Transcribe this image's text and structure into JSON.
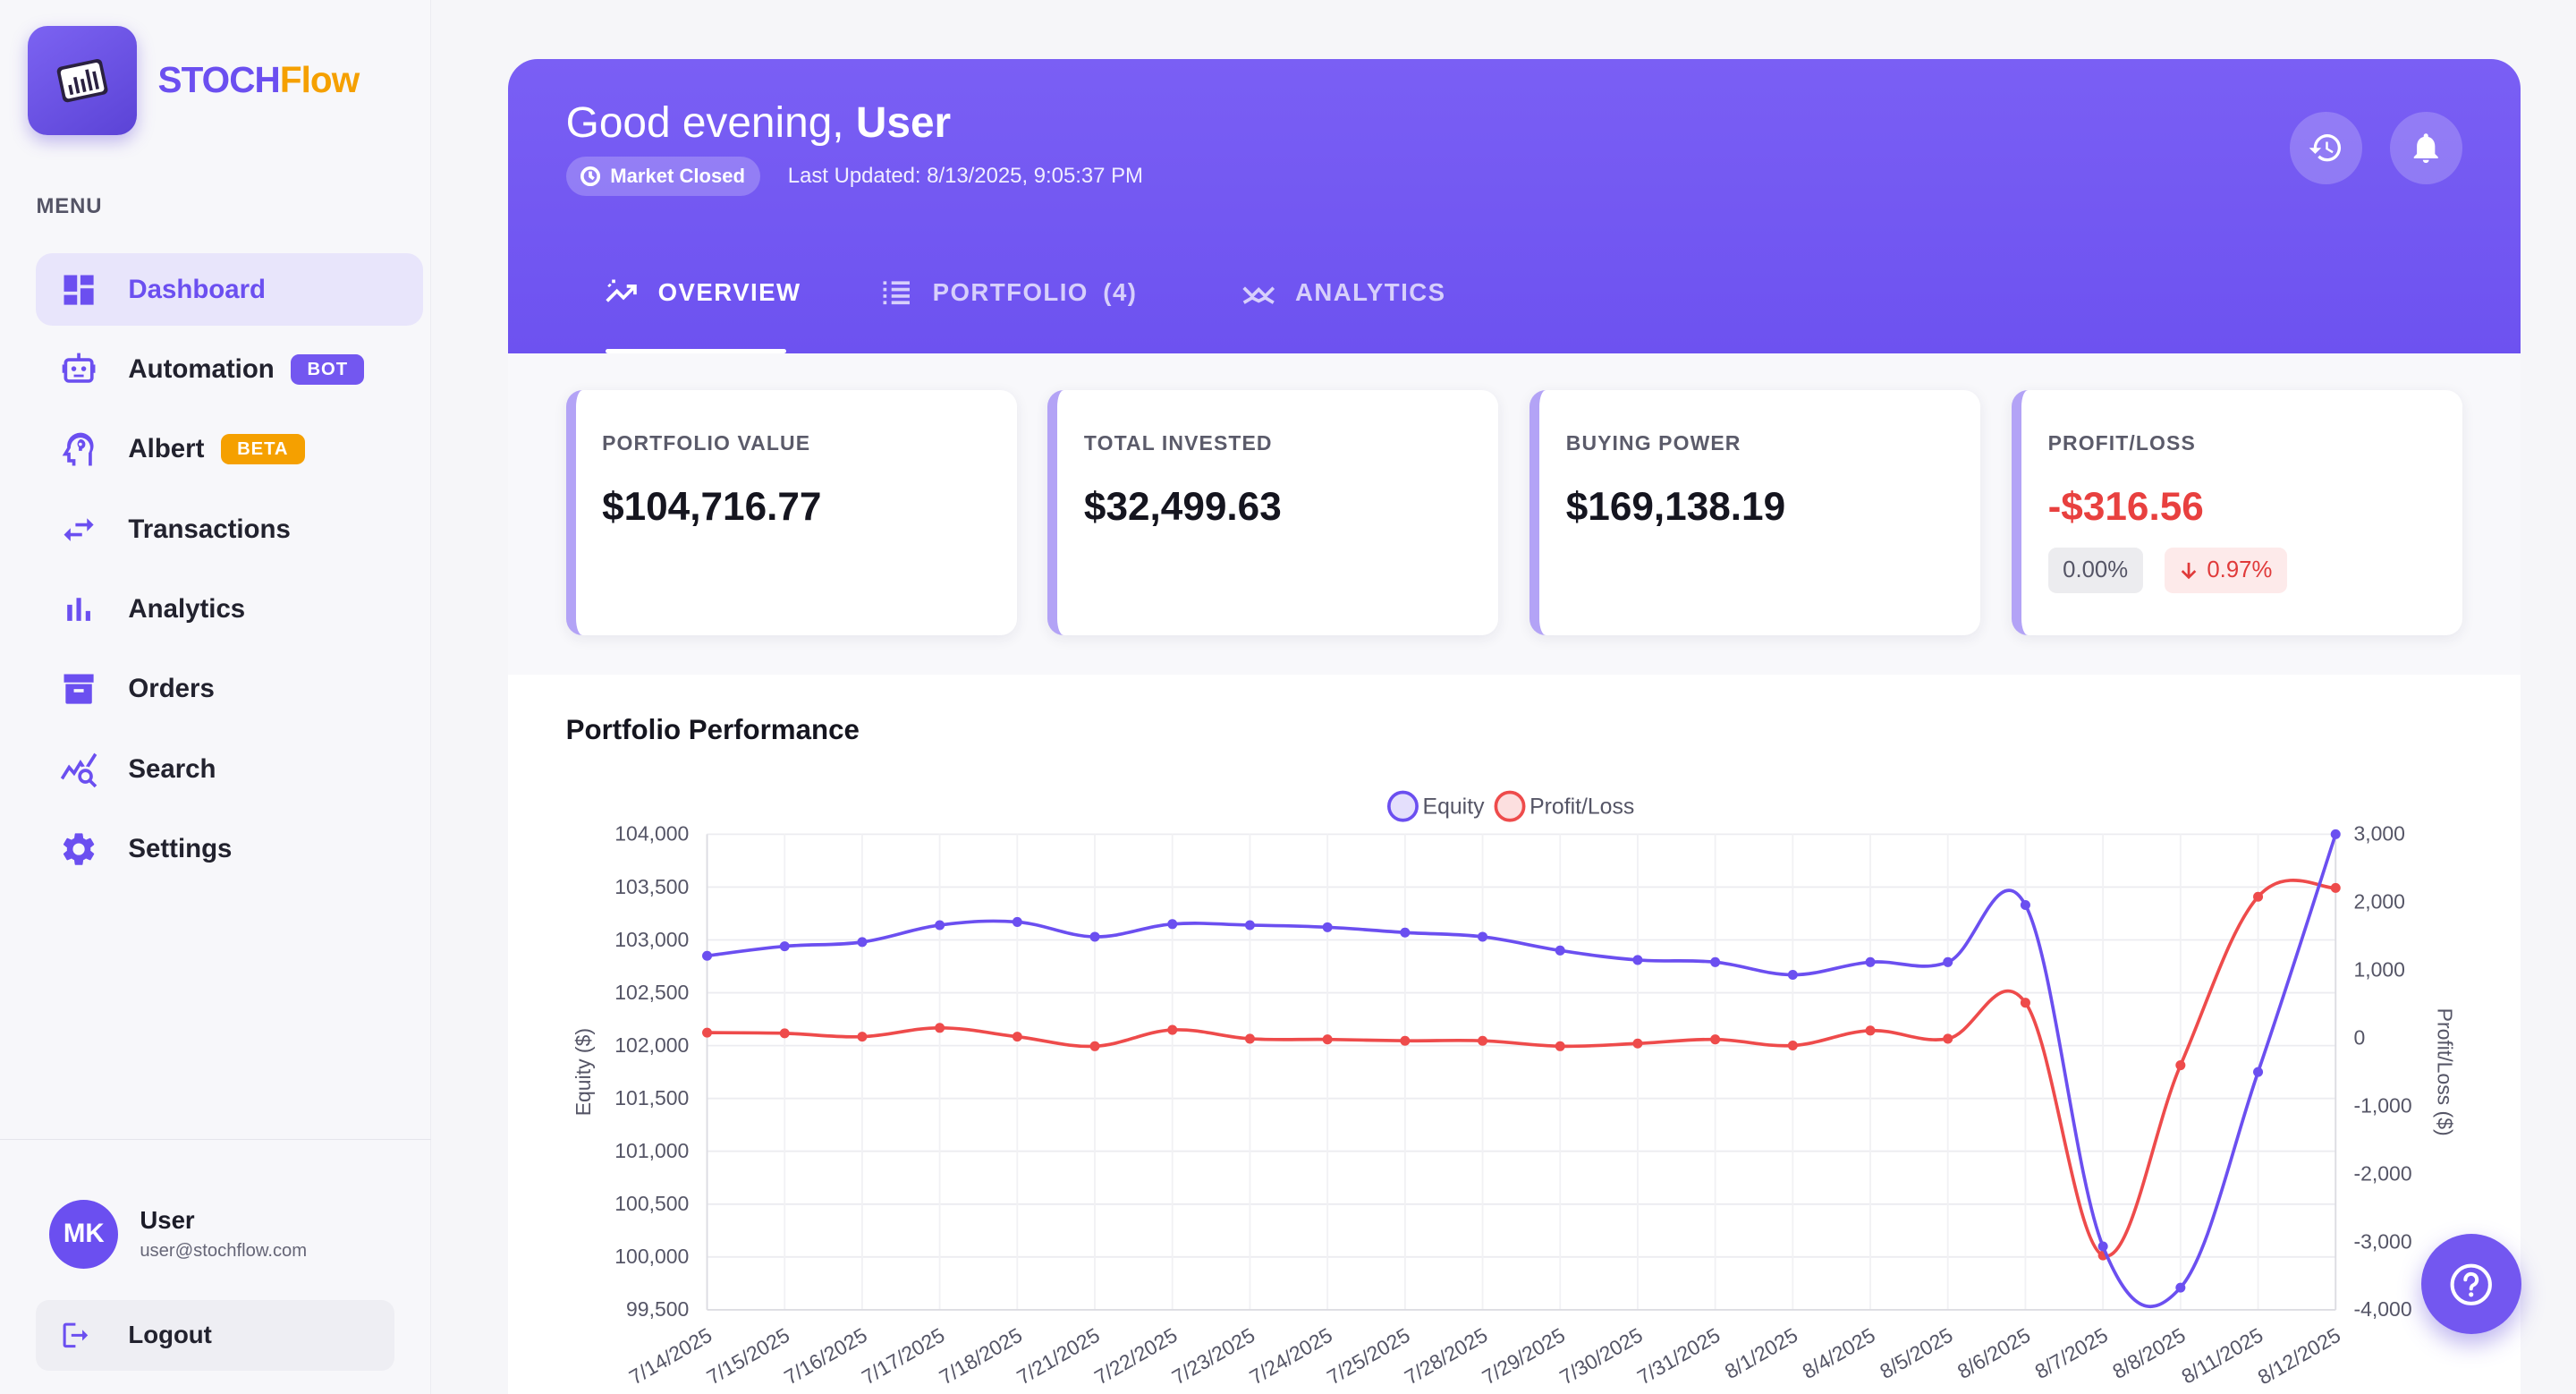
{
  "brand": {
    "part1": "STOCH",
    "part2": "Flow"
  },
  "sidebar": {
    "menu_label": "MENU",
    "items": [
      {
        "label": "Dashboard",
        "icon": "dashboard-icon"
      },
      {
        "label": "Automation",
        "icon": "robot-icon",
        "badge": "BOT"
      },
      {
        "label": "Albert",
        "icon": "brain-icon",
        "badge": "BETA"
      },
      {
        "label": "Transactions",
        "icon": "swap-arrows-icon"
      },
      {
        "label": "Analytics",
        "icon": "bar-chart-icon"
      },
      {
        "label": "Orders",
        "icon": "archive-box-icon"
      },
      {
        "label": "Search",
        "icon": "chart-search-icon"
      },
      {
        "label": "Settings",
        "icon": "gear-icon"
      }
    ],
    "user": {
      "initials": "MK",
      "name": "User",
      "email": "user@stochflow.com"
    },
    "logout_label": "Logout"
  },
  "header": {
    "greeting_prefix": "Good evening, ",
    "greeting_name": "User",
    "market_status": "Market Closed",
    "last_updated": "Last Updated: 8/13/2025, 9:05:37 PM",
    "tabs": [
      {
        "label": "OVERVIEW",
        "icon": "trending-up-icon"
      },
      {
        "label": "PORTFOLIO",
        "count": "(4)",
        "icon": "list-icon"
      },
      {
        "label": "ANALYTICS",
        "icon": "analytics-zigzag-icon"
      }
    ]
  },
  "stats": [
    {
      "title": "PORTFOLIO VALUE",
      "value": "$104,716.77"
    },
    {
      "title": "TOTAL INVESTED",
      "value": "$32,499.63"
    },
    {
      "title": "BUYING POWER",
      "value": "$169,138.19"
    },
    {
      "title": "PROFIT/LOSS",
      "value": "-$316.56",
      "chip1": "0.00%",
      "chip2": "0.97%"
    }
  ],
  "colors": {
    "accent": "#6b4ff0",
    "equity": "#6b4ff0",
    "profit_loss": "#ee4b4b",
    "negative": "#e8403f"
  },
  "chart_title": "Portfolio Performance",
  "chart_data": {
    "type": "line",
    "title": "Portfolio Performance",
    "x": [
      "7/14/2025",
      "7/15/2025",
      "7/16/2025",
      "7/17/2025",
      "7/18/2025",
      "7/21/2025",
      "7/22/2025",
      "7/23/2025",
      "7/24/2025",
      "7/25/2025",
      "7/28/2025",
      "7/29/2025",
      "7/30/2025",
      "7/31/2025",
      "8/1/2025",
      "8/4/2025",
      "8/5/2025",
      "8/6/2025",
      "8/7/2025",
      "8/8/2025",
      "8/11/2025",
      "8/12/2025"
    ],
    "series": [
      {
        "name": "Equity",
        "axis": "left",
        "color": "#6b4ff0",
        "values": [
          102850,
          102940,
          102980,
          103140,
          103170,
          103030,
          103150,
          103140,
          103120,
          103070,
          103030,
          102900,
          102810,
          102790,
          102670,
          102790,
          102790,
          103330,
          100100,
          99710,
          101750,
          104000
        ]
      },
      {
        "name": "Profit/Loss",
        "axis": "right",
        "color": "#ee4b4b",
        "values": [
          80,
          70,
          20,
          150,
          20,
          -120,
          120,
          -10,
          -20,
          -40,
          -40,
          -120,
          -80,
          -20,
          -110,
          110,
          -10,
          520,
          -3200,
          -400,
          2080,
          2210
        ]
      }
    ],
    "ylabel": "Equity ($)",
    "y2label": "Profit/Loss ($)",
    "ylim": [
      99500,
      104000
    ],
    "y2lim": [
      -4000,
      3000
    ],
    "yticks": [
      "104,000",
      "103,500",
      "103,000",
      "102,500",
      "102,000",
      "101,500",
      "101,000",
      "100,500",
      "100,000",
      "99,500"
    ],
    "y2ticks": [
      "3,000",
      "2,000",
      "1,000",
      "0",
      "-1,000",
      "-2,000",
      "-3,000",
      "-4,000"
    ],
    "legend": "top-center",
    "grid": true
  }
}
